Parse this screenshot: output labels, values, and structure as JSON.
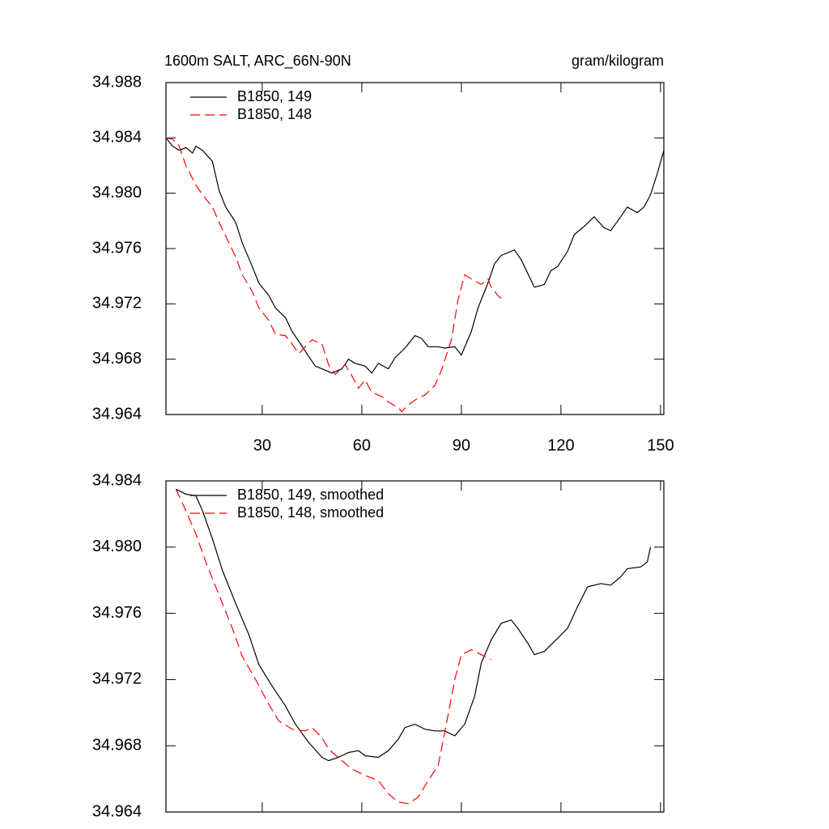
{
  "chart_data": [
    {
      "type": "line",
      "title": "1600m SALT, ARC_66N-90N",
      "units": "gram/kilogram",
      "xlim": [
        1,
        151
      ],
      "xticks": [
        30,
        60,
        90,
        120,
        150
      ],
      "show_xtick_labels": true,
      "ylim": [
        34.964,
        34.988
      ],
      "yticks": [
        34.964,
        34.968,
        34.972,
        34.976,
        {
          "value": 34.98,
          "label": "34.980"
        },
        34.984,
        34.988
      ],
      "legend": "top-left",
      "series": [
        {
          "name": "B1850, 149",
          "color": "#000000",
          "dash": false,
          "x": [
            1,
            3,
            5,
            7,
            9,
            10,
            12,
            15,
            17,
            19,
            22,
            24,
            27,
            29,
            32,
            34,
            37,
            39,
            41,
            44,
            46,
            49,
            51,
            54,
            56,
            58,
            61,
            63,
            65,
            68,
            70,
            73,
            76,
            78,
            80,
            83,
            85,
            88,
            90,
            93,
            95,
            98,
            100,
            102,
            106,
            108,
            112,
            115,
            117,
            119,
            122,
            124,
            127,
            130,
            133,
            135,
            138,
            140,
            143,
            145,
            147,
            149,
            151
          ],
          "values": [
            34.984,
            34.9834,
            34.9831,
            34.9833,
            34.9829,
            34.9834,
            34.9831,
            34.9823,
            34.9802,
            34.979,
            34.9779,
            34.9764,
            34.9747,
            34.9735,
            34.9726,
            34.9717,
            34.971,
            34.97,
            34.9693,
            34.9682,
            34.9675,
            34.9672,
            34.967,
            34.9673,
            34.968,
            34.9677,
            34.9675,
            34.967,
            34.9677,
            34.9673,
            34.9681,
            34.9688,
            34.9697,
            34.9695,
            34.9689,
            34.9689,
            34.9688,
            34.9689,
            34.9683,
            34.97,
            34.9717,
            34.9735,
            34.9749,
            34.9755,
            34.9759,
            34.9752,
            34.9732,
            34.9734,
            34.9744,
            34.9747,
            34.9758,
            34.977,
            34.9776,
            34.9783,
            34.9775,
            34.9773,
            34.9783,
            34.979,
            34.9786,
            34.979,
            34.9799,
            34.9814,
            34.9831
          ]
        },
        {
          "name": "B1850, 148",
          "color": "#ff0000",
          "dash": true,
          "x": [
            1,
            3,
            5,
            7,
            10,
            12,
            15,
            17,
            20,
            22,
            24,
            27,
            29,
            32,
            34,
            37,
            39,
            41,
            43,
            45,
            48,
            50,
            52,
            55,
            57,
            59,
            61,
            63,
            66,
            68,
            71,
            72,
            74,
            77,
            79,
            82,
            84,
            87,
            89,
            91,
            93,
            96,
            98,
            99,
            101,
            102
          ],
          "values": [
            34.984,
            34.9839,
            34.9834,
            34.982,
            34.9806,
            34.9799,
            34.979,
            34.9779,
            34.9764,
            34.9754,
            34.9741,
            34.9729,
            34.9717,
            34.9708,
            34.9698,
            34.9697,
            34.9691,
            34.9684,
            34.9689,
            34.9694,
            34.9691,
            34.9676,
            34.9669,
            34.9676,
            34.9668,
            34.9659,
            34.9665,
            34.9656,
            34.9653,
            34.9649,
            34.9645,
            34.9642,
            34.9647,
            34.9652,
            34.9654,
            34.9661,
            34.9672,
            34.9694,
            34.9723,
            34.9741,
            34.9738,
            34.9734,
            34.9738,
            34.9732,
            34.9726,
            34.9724
          ]
        }
      ]
    },
    {
      "type": "line",
      "xlim": [
        1,
        151
      ],
      "xticks": [
        30,
        60,
        90,
        120,
        150
      ],
      "show_xtick_labels": false,
      "ylim": [
        34.964,
        34.984
      ],
      "yticks": [
        34.964,
        34.968,
        34.972,
        34.976,
        {
          "value": 34.98,
          "label": "34.980"
        },
        34.984
      ],
      "legend": "top-left",
      "series": [
        {
          "name": "B1850, 149, smoothed",
          "color": "#000000",
          "dash": false,
          "x": [
            4,
            7,
            10,
            12,
            15,
            18,
            22,
            26,
            29,
            33,
            37,
            40,
            44,
            48,
            50,
            53,
            56,
            59,
            61,
            65,
            68,
            71,
            73,
            76,
            79,
            82,
            85,
            88,
            91,
            94,
            96,
            99,
            102,
            105,
            107,
            110,
            112,
            115,
            118,
            122,
            125,
            128,
            132,
            135,
            138,
            140,
            144,
            146,
            147
          ],
          "values": [
            34.9835,
            34.9832,
            34.9831,
            34.9822,
            34.9805,
            34.9786,
            34.9766,
            34.9747,
            34.9729,
            34.9716,
            34.9704,
            34.9693,
            34.9682,
            34.9673,
            34.9671,
            34.9673,
            34.9676,
            34.9677,
            34.9674,
            34.9673,
            34.9677,
            34.9684,
            34.9691,
            34.9693,
            34.969,
            34.9689,
            34.9689,
            34.9686,
            34.9693,
            34.971,
            34.973,
            34.9744,
            34.9754,
            34.9756,
            34.9751,
            34.9742,
            34.9735,
            34.9737,
            34.9743,
            34.9751,
            34.9764,
            34.9776,
            34.9778,
            34.9777,
            34.9782,
            34.9787,
            34.9788,
            34.9791,
            34.98
          ]
        },
        {
          "name": "B1850, 148, smoothed",
          "color": "#ff0000",
          "dash": true,
          "x": [
            4,
            7,
            10,
            13,
            17,
            21,
            24,
            28,
            32,
            35,
            39,
            43,
            45,
            48,
            50,
            54,
            57,
            61,
            65,
            68,
            71,
            74,
            77,
            80,
            83,
            85,
            88,
            90,
            93,
            96,
            99
          ],
          "values": [
            34.9835,
            34.9822,
            34.9808,
            34.9791,
            34.9771,
            34.9751,
            34.9734,
            34.972,
            34.9705,
            34.9695,
            34.969,
            34.9689,
            34.9691,
            34.9685,
            34.9678,
            34.9671,
            34.9666,
            34.9662,
            34.9659,
            34.9651,
            34.9646,
            34.9645,
            34.9649,
            34.9659,
            34.9668,
            34.9688,
            34.972,
            34.9735,
            34.9738,
            34.9735,
            34.9732
          ]
        }
      ]
    }
  ]
}
